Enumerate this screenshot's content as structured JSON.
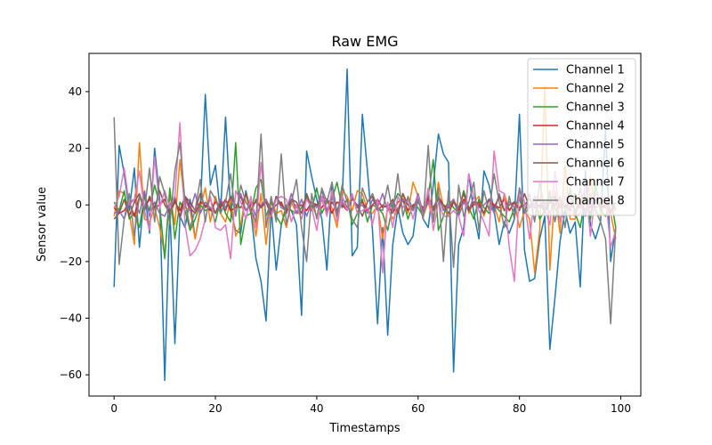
{
  "chart_data": {
    "type": "line",
    "title": "Raw EMG",
    "xlabel": "Timestamps",
    "ylabel": "Sensor value",
    "xlim": [
      -4.95,
      103.95
    ],
    "ylim": [
      -67.5,
      53.5
    ],
    "xticks": [
      0,
      20,
      40,
      60,
      80,
      100
    ],
    "yticks": [
      -60,
      -40,
      -20,
      0,
      20,
      40
    ],
    "ytick_labels": [
      "−60",
      "−40",
      "−20",
      "0",
      "20",
      "40"
    ],
    "grid": false,
    "legend_position": "top-right",
    "x": [
      0,
      1,
      2,
      3,
      4,
      5,
      6,
      7,
      8,
      9,
      10,
      11,
      12,
      13,
      14,
      15,
      16,
      17,
      18,
      19,
      20,
      21,
      22,
      23,
      24,
      25,
      26,
      27,
      28,
      29,
      30,
      31,
      32,
      33,
      34,
      35,
      36,
      37,
      38,
      39,
      40,
      41,
      42,
      43,
      44,
      45,
      46,
      47,
      48,
      49,
      50,
      51,
      52,
      53,
      54,
      55,
      56,
      57,
      58,
      59,
      60,
      61,
      62,
      63,
      64,
      65,
      66,
      67,
      68,
      69,
      70,
      71,
      72,
      73,
      74,
      75,
      76,
      77,
      78,
      79,
      80,
      81,
      82,
      83,
      84,
      85,
      86,
      87,
      88,
      89,
      90,
      91,
      92,
      93,
      94,
      95,
      96,
      97,
      98,
      99
    ],
    "series": [
      {
        "name": "Channel 1",
        "color": "#1f77b4",
        "values": [
          -29,
          21,
          11,
          -2,
          13,
          -15,
          5,
          -10,
          20,
          2,
          -62,
          -1,
          -49,
          -4,
          -8,
          2,
          -12,
          -2,
          39,
          7,
          14,
          -3,
          31,
          -2,
          -9,
          -10,
          5,
          -2,
          -19,
          -27,
          -41,
          -1,
          -23,
          -7,
          -1,
          -2,
          -7,
          -39,
          19,
          10,
          2,
          -5,
          -23,
          8,
          -3,
          1,
          48,
          -18,
          -15,
          32,
          12,
          -9,
          -42,
          -8,
          -46,
          -14,
          -1,
          -10,
          -14,
          -11,
          3,
          -5,
          -8,
          7,
          25,
          18,
          15,
          -59,
          -14,
          -8,
          11,
          -3,
          -12,
          12,
          7,
          -2,
          -14,
          -6,
          -10,
          -5,
          32,
          -16,
          -27,
          -26,
          -12,
          -4,
          -51,
          -33,
          -13,
          -2,
          -10,
          -6,
          -29,
          12,
          -7,
          -12,
          -6,
          27,
          -20,
          -8
        ]
      },
      {
        "name": "Channel 2",
        "color": "#ff7f0e",
        "values": [
          -4,
          5,
          4,
          -3,
          -14,
          22,
          -5,
          -6,
          -1,
          -8,
          -18,
          4,
          -7,
          16,
          -1,
          -2,
          -12,
          -1,
          6,
          -6,
          3,
          -3,
          -6,
          2,
          -11,
          -7,
          4,
          -1,
          -11,
          4,
          -14,
          2,
          -3,
          -2,
          -8,
          1,
          -3,
          -3,
          3,
          0,
          -4,
          3,
          2,
          -1,
          -8,
          5,
          3,
          -2,
          5,
          4,
          -2,
          -3,
          0,
          -12,
          -1,
          -5,
          -2,
          4,
          -3,
          8,
          3,
          -4,
          1,
          -6,
          8,
          -1,
          -4,
          2,
          -2,
          5,
          -3,
          1,
          3,
          -4,
          2,
          0,
          -6,
          4,
          -2,
          1,
          -8,
          -2,
          -5,
          -24,
          -9,
          42,
          -23,
          5,
          -10,
          14,
          -5,
          -5,
          3,
          -3,
          10,
          -2,
          -4,
          2,
          -3,
          -12
        ]
      },
      {
        "name": "Channel 3",
        "color": "#2ca02c",
        "values": [
          1,
          -2,
          5,
          -5,
          -3,
          -8,
          3,
          -2,
          7,
          0,
          -19,
          6,
          -12,
          1,
          -2,
          -9,
          -5,
          0,
          -2,
          -1,
          -6,
          2,
          -3,
          -6,
          22,
          -14,
          -4,
          -3,
          6,
          9,
          -4,
          1,
          -4,
          -7,
          0,
          -2,
          -3,
          -1,
          3,
          -2,
          6,
          -3,
          1,
          2,
          8,
          -1,
          2,
          -7,
          -3,
          2,
          -6,
          0,
          -1,
          -3,
          -9,
          0,
          4,
          2,
          -5,
          0,
          -1,
          -4,
          3,
          16,
          -9,
          -4,
          2,
          -1,
          -3,
          5,
          -1,
          -5,
          2,
          -1,
          -3,
          0,
          -2,
          -4,
          -6,
          -1,
          2,
          -3,
          -1,
          3,
          -5,
          -2,
          3,
          -1,
          -5,
          -2,
          4,
          -3,
          -8,
          3,
          -5,
          7,
          -2,
          -4,
          3,
          -8
        ]
      },
      {
        "name": "Channel 4",
        "color": "#d62728",
        "values": [
          -1,
          -3,
          -2,
          1,
          -4,
          3,
          -1,
          2,
          -1,
          0,
          2,
          -3,
          1,
          -2,
          3,
          -1,
          -3,
          1,
          0,
          -2,
          1,
          -1,
          2,
          -2,
          -1,
          3,
          -2,
          0,
          1,
          -1,
          2,
          -2,
          0,
          1,
          -3,
          2,
          -1,
          0,
          -2,
          1,
          0,
          -1,
          2,
          -3,
          1,
          0,
          -2,
          3,
          -1,
          1,
          -2,
          0,
          2,
          -1,
          0,
          -3,
          1,
          2,
          -2,
          0,
          1,
          -1,
          2,
          -2,
          3,
          0,
          -1,
          1,
          -2,
          2,
          -1,
          0,
          1,
          -3,
          2,
          0,
          -1,
          2,
          -2,
          1,
          -1,
          0,
          2,
          -1,
          0,
          -2,
          1,
          0,
          2,
          -1,
          1,
          -2,
          0,
          1,
          -1,
          2,
          -1,
          0,
          -3,
          1
        ]
      },
      {
        "name": "Channel 5",
        "color": "#9467bd",
        "values": [
          -3,
          -2,
          -5,
          1,
          2,
          -3,
          5,
          -4,
          1,
          -3,
          -4,
          0,
          3,
          -5,
          2,
          -2,
          4,
          -3,
          1,
          -1,
          -3,
          2,
          -1,
          3,
          -3,
          4,
          -2,
          1,
          -4,
          0,
          2,
          -3,
          3,
          -1,
          -2,
          4,
          -3,
          2,
          -4,
          1,
          -1,
          5,
          -2,
          3,
          -4,
          1,
          -2,
          3,
          -1,
          0,
          -3,
          2,
          -1,
          4,
          -2,
          1,
          -3,
          2,
          0,
          -2,
          4,
          -3,
          1,
          -1,
          3,
          -2,
          0,
          2,
          -4,
          1,
          -2,
          3,
          -1,
          0,
          2,
          -3,
          4,
          -2,
          1,
          -1,
          3,
          -2,
          0,
          2,
          -1,
          1,
          -3,
          2,
          0,
          -1,
          3,
          -2,
          1,
          -4,
          2,
          -1,
          0,
          3,
          -2,
          1
        ]
      },
      {
        "name": "Channel 6",
        "color": "#8c564b",
        "values": [
          -5,
          -3,
          2,
          -4,
          1,
          4,
          -2,
          3,
          -1,
          5,
          0,
          -3,
          2,
          -4,
          3,
          1,
          -2,
          4,
          -1,
          2,
          -3,
          1,
          -2,
          3,
          0,
          -1,
          4,
          -3,
          2,
          -1,
          1,
          -4,
          3,
          0,
          -2,
          2,
          1,
          -3,
          4,
          -1,
          0,
          2,
          -3,
          1,
          -2,
          3,
          -1,
          2,
          0,
          -4,
          1,
          3,
          -2,
          0,
          -1,
          2,
          -3,
          4,
          0,
          -1,
          1,
          -2,
          3,
          -1,
          2,
          0,
          -3,
          1,
          -1,
          4,
          -2,
          1,
          0,
          -3,
          2,
          -1,
          3,
          -2,
          0,
          1,
          -2,
          4,
          -1,
          0,
          2,
          -3,
          1,
          3,
          -1,
          0,
          -2,
          4,
          -1,
          1,
          -3,
          2,
          0,
          -1,
          3,
          -2
        ]
      },
      {
        "name": "Channel 7",
        "color": "#e377c2",
        "values": [
          -1,
          3,
          13,
          0,
          2,
          12,
          -2,
          -9,
          17,
          -1,
          5,
          -1,
          3,
          29,
          -7,
          -18,
          -16,
          -12,
          -5,
          3,
          -8,
          -9,
          -7,
          -19,
          5,
          1,
          -5,
          3,
          -8,
          15,
          -5,
          -4,
          2,
          3,
          2,
          -6,
          0,
          -5,
          2,
          -1,
          -9,
          3,
          -4,
          5,
          -6,
          3,
          -2,
          4,
          -3,
          -2,
          -1,
          -7,
          2,
          -24,
          1,
          -8,
          3,
          -1,
          2,
          -5,
          3,
          -4,
          6,
          -9,
          1,
          -4,
          -4,
          -2,
          -4,
          -11,
          11,
          3,
          -2,
          -6,
          -11,
          19,
          5,
          4,
          -15,
          -27,
          6,
          1,
          -12,
          3,
          2,
          -1,
          -7,
          12,
          -6,
          3,
          -1,
          -4,
          -3,
          8,
          -11,
          4,
          2,
          3,
          -15,
          -9
        ]
      },
      {
        "name": "Channel 8",
        "color": "#7f7f7f",
        "values": [
          31,
          -21,
          -5,
          4,
          -11,
          3,
          -2,
          13,
          -6,
          10,
          4,
          -7,
          12,
          22,
          1,
          -8,
          -2,
          9,
          -6,
          5,
          2,
          -3,
          1,
          11,
          -4,
          7,
          1,
          -2,
          -6,
          25,
          -8,
          3,
          -6,
          18,
          -7,
          1,
          9,
          -8,
          -20,
          4,
          -5,
          6,
          1,
          8,
          -4,
          7,
          1,
          -5,
          -8,
          6,
          1,
          4,
          -1,
          -2,
          7,
          -3,
          11,
          -4,
          3,
          -2,
          2,
          -5,
          21,
          -6,
          6,
          -20,
          5,
          -22,
          7,
          -4,
          1,
          8,
          -9,
          5,
          -2,
          11,
          1,
          -8,
          3,
          -5,
          6,
          -3,
          4,
          -6,
          8,
          -2,
          5,
          -6,
          3,
          -8,
          6,
          -4,
          6,
          -3,
          4,
          -2,
          -6,
          -12,
          -42,
          -8
        ]
      }
    ]
  }
}
